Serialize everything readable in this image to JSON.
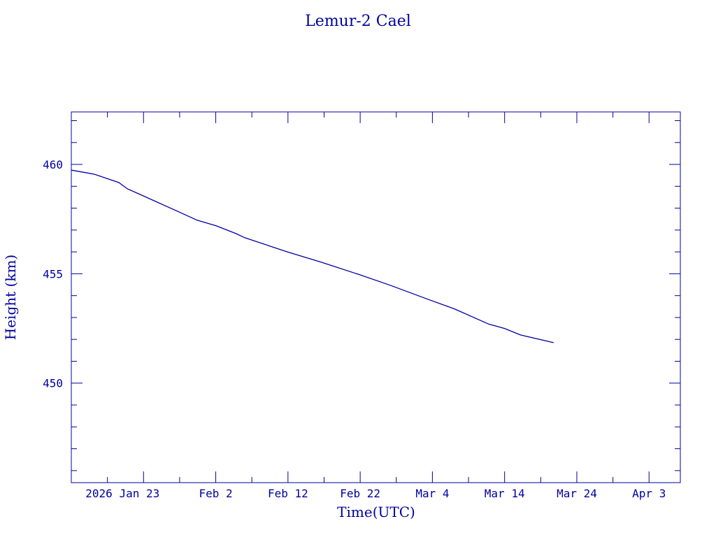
{
  "chart_data": {
    "type": "line",
    "title": "Lemur-2 Cael",
    "xlabel": "Time(UTC)",
    "ylabel": "Height (km)",
    "xlim": [
      "2026-01-13T00:00",
      "2026-04-07T08:00"
    ],
    "ylim": [
      445.45,
      462.4
    ],
    "x_ticks": [
      "2026-01-23",
      "2026-02-02",
      "2026-02-12",
      "2026-02-22",
      "2026-03-04",
      "2026-03-14",
      "2026-03-24",
      "2026-04-03"
    ],
    "x_tick_labels": [
      "2026 Jan 23",
      "Feb  2",
      "Feb 12",
      "Feb 22",
      "Mar  4",
      "Mar 14",
      "Mar 24",
      "Apr  3"
    ],
    "y_ticks": [
      450,
      455,
      460
    ],
    "y_tick_labels": [
      "450",
      "455",
      "460"
    ],
    "grid": false,
    "color": "#0000a0",
    "series": [
      {
        "x": [
          "2026-01-13T00:00",
          "2026-01-16T05:00",
          "2026-01-19T14:00",
          "2026-01-20T19:00",
          "2026-01-22T12:00",
          "2026-01-28T02:00",
          "2026-01-30T10:00",
          "2026-02-02T02:00",
          "2026-02-04T19:00",
          "2026-02-06T00:00",
          "2026-02-11T22:00",
          "2026-02-16T14:00",
          "2026-02-21T19:00",
          "2026-02-26T07:00",
          "2026-03-03T12:00",
          "2026-03-07T00:00",
          "2026-03-11T19:00",
          "2026-03-14T00:00",
          "2026-03-16T05:00",
          "2026-03-20T19:00"
        ],
        "y": [
          459.74,
          459.55,
          459.17,
          458.88,
          458.63,
          457.8,
          457.45,
          457.19,
          456.84,
          456.65,
          456.0,
          455.53,
          454.97,
          454.46,
          453.82,
          453.4,
          452.7,
          452.5,
          452.2,
          451.85
        ]
      }
    ]
  }
}
